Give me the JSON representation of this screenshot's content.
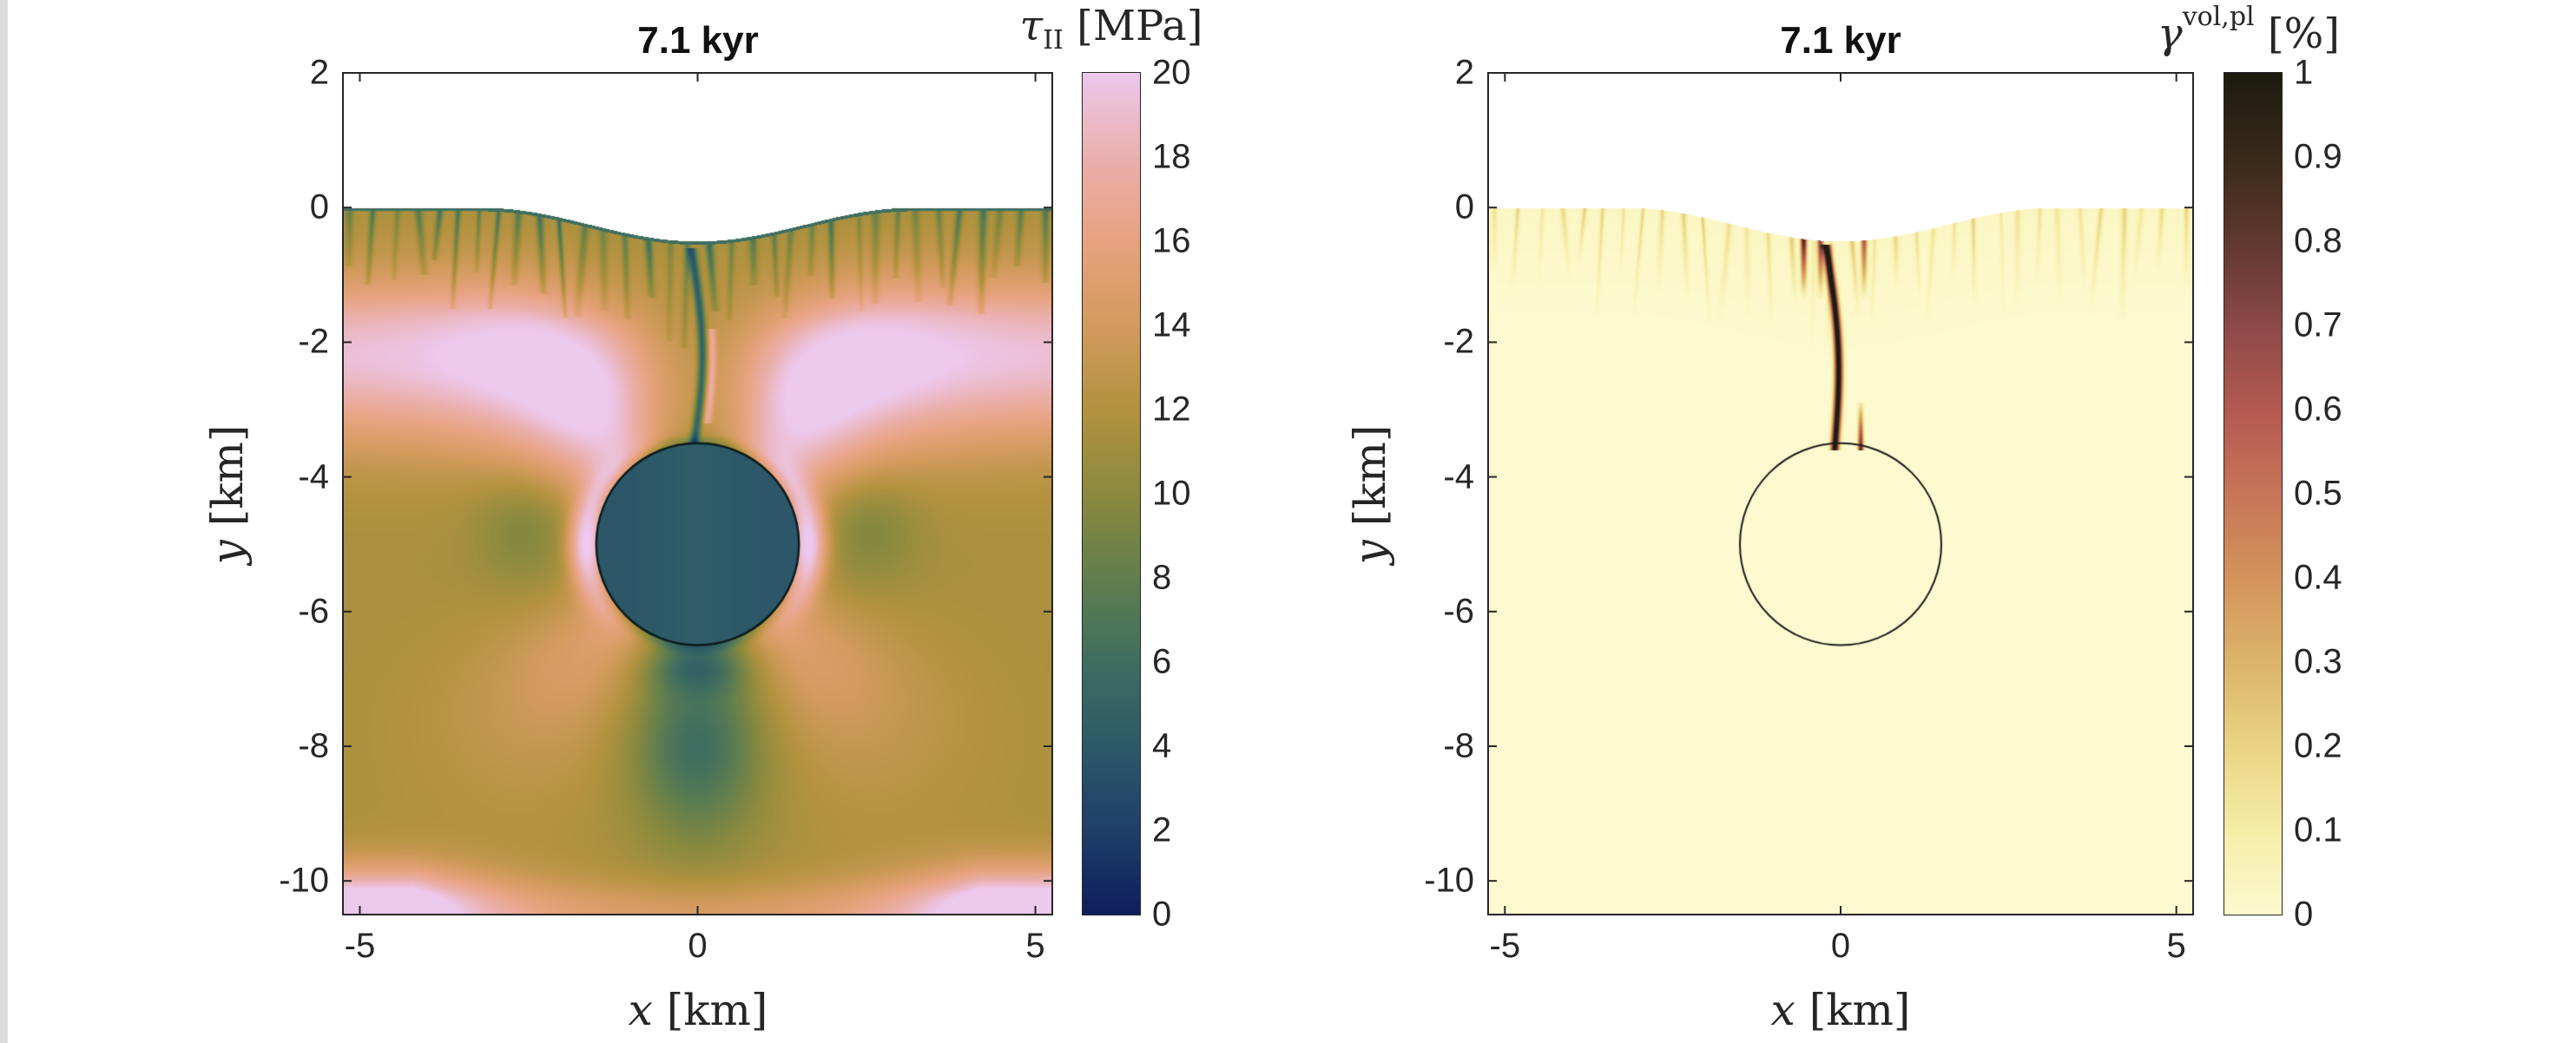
{
  "figure": {
    "panels": [
      {
        "id": "stress",
        "title": "7.1 kyr",
        "xlabel_var": "x",
        "xlabel_unit": "[km]",
        "ylabel_var": "y",
        "ylabel_unit": "[km]",
        "colorbar": {
          "symbol": "τ",
          "subscript": "II",
          "superscript": "",
          "unit": "[MPa]",
          "range": [
            0,
            20
          ],
          "ticks": [
            "0",
            "2",
            "4",
            "6",
            "8",
            "10",
            "12",
            "14",
            "16",
            "18",
            "20"
          ],
          "colormap": [
            "#0f1f5c",
            "#1f3f6a",
            "#2d5a68",
            "#3f6e60",
            "#627f4e",
            "#8c8a3e",
            "#b3923f",
            "#d39b5e",
            "#e7a37f",
            "#ebb0ae",
            "#ecc8ed"
          ]
        }
      },
      {
        "id": "plastic-strain",
        "title": "7.1 kyr",
        "xlabel_var": "x",
        "xlabel_unit": "[km]",
        "ylabel_var": "y",
        "ylabel_unit": "[km]",
        "colorbar": {
          "symbol": "γ",
          "subscript": "",
          "superscript": "vol,pl",
          "unit": "[%]",
          "range": [
            0,
            1
          ],
          "ticks": [
            "0",
            "0.1",
            "0.2",
            "0.3",
            "0.4",
            "0.5",
            "0.6",
            "0.7",
            "0.8",
            "0.9",
            "1"
          ],
          "colormap": [
            "#fdfad0",
            "#f6eda8",
            "#ead483",
            "#dcb46a",
            "#d4945c",
            "#c87558",
            "#b55a53",
            "#8d4a48",
            "#61392f",
            "#3a2a1a",
            "#1c1c10"
          ]
        }
      }
    ]
  },
  "chart_data": [
    {
      "type": "heatmap",
      "title": "7.1 kyr",
      "xlabel": "x [km]",
      "ylabel": "y [km]",
      "colorbar_label": "τ_II [MPa]",
      "xlim": [
        -5.25,
        5.25
      ],
      "ylim": [
        -10.5,
        2
      ],
      "xticks": [
        -5,
        0,
        5
      ],
      "yticks": [
        2,
        0,
        -2,
        -4,
        -6,
        -8,
        -10
      ],
      "clim": [
        0,
        20
      ],
      "colorbar_ticks": [
        0,
        2,
        4,
        6,
        8,
        10,
        12,
        14,
        16,
        18,
        20
      ],
      "features": {
        "surface_profile": {
          "flank_y": 0,
          "center_trough_y": -0.5,
          "trough_halfwidth_km": 3.2
        },
        "magma_chamber": {
          "center": [
            0,
            -5
          ],
          "radius": 1.5,
          "interior_value": 4
        },
        "near_surface_zone_depth_km": 1.5,
        "typical_values": {
          "near_surface": 11,
          "high_stress_band": 19,
          "background_deep": 12,
          "below_chamber_plume": 6,
          "side_halos": 20
        }
      }
    },
    {
      "type": "heatmap",
      "title": "7.1 kyr",
      "xlabel": "x [km]",
      "ylabel": "y [km]",
      "colorbar_label": "γ^vol,pl [%]",
      "xlim": [
        -5.25,
        5.25
      ],
      "ylim": [
        -10.5,
        2
      ],
      "xticks": [
        -5,
        0,
        5
      ],
      "yticks": [
        2,
        0,
        -2,
        -4,
        -6,
        -8,
        -10
      ],
      "clim": [
        0,
        1
      ],
      "colorbar_ticks": [
        0,
        0.1,
        0.2,
        0.3,
        0.4,
        0.5,
        0.6,
        0.7,
        0.8,
        0.9,
        1
      ],
      "features": {
        "surface_profile": {
          "flank_y": 0,
          "center_trough_y": -0.5,
          "trough_halfwidth_km": 3.2
        },
        "magma_chamber_outline": {
          "center": [
            0,
            -5
          ],
          "radius": 1.5
        },
        "main_fracture": {
          "from": [
            -0.1,
            -3.5
          ],
          "to": [
            -0.3,
            -1.0
          ],
          "value": 1.0
        },
        "shallow_fractures_depth_km": 1.2,
        "background_value": 0
      }
    }
  ]
}
